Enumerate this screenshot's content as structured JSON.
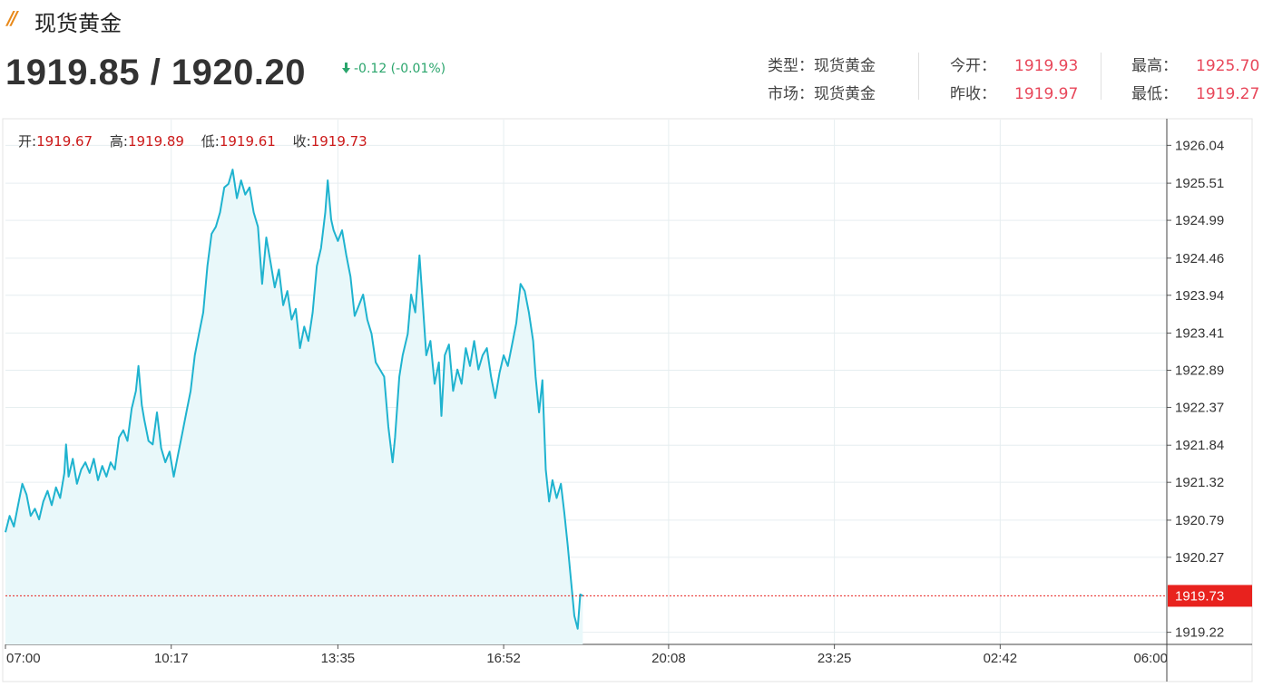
{
  "header": {
    "logo_mark": "//",
    "title": "现货黄金",
    "bid_ask": "1919.85 / 1920.20",
    "change": "-0.12 (-0.01%)"
  },
  "info": {
    "type_label": "类型：",
    "type_value": "现货黄金",
    "market_label": "市场：",
    "market_value": "现货黄金",
    "open_label": "今开：",
    "open_value": "1919.93",
    "prevclose_label": "昨收：",
    "prevclose_value": "1919.97",
    "high_label": "最高：",
    "high_value": "1925.70",
    "low_label": "最低：",
    "low_value": "1919.27"
  },
  "ohlc": {
    "open_label": "开:",
    "open_value": "1919.67",
    "high_label": "高:",
    "high_value": "1919.89",
    "low_label": "低:",
    "low_value": "1919.61",
    "close_label": "收:",
    "close_value": "1919.73"
  },
  "colors": {
    "line": "#1fb3cf",
    "fill": "#e9f8fa",
    "grid": "#e6eef0",
    "current_price_bg": "#e8221e",
    "up_down": "#2aa56c",
    "value_red": "#e8475a"
  },
  "chart_data": {
    "type": "area",
    "current_price": 1919.73,
    "y_ticks": [
      1926.04,
      1925.51,
      1924.99,
      1924.46,
      1923.94,
      1923.41,
      1922.89,
      1922.37,
      1921.84,
      1921.32,
      1920.79,
      1920.27,
      1919.22
    ],
    "ylim": [
      1919.05,
      1926.4
    ],
    "x_ticks": [
      "07:00",
      "10:17",
      "13:35",
      "16:52",
      "20:08",
      "23:25",
      "02:42",
      "06:00"
    ],
    "x_tick_minutes": [
      0,
      197,
      395,
      592,
      788,
      985,
      1182,
      1380
    ],
    "x_range_minutes": [
      0,
      1380
    ],
    "series": [
      {
        "values": [
          [
            0,
            1920.62
          ],
          [
            5,
            1920.85
          ],
          [
            10,
            1920.7
          ],
          [
            15,
            1921.0
          ],
          [
            20,
            1921.3
          ],
          [
            25,
            1921.15
          ],
          [
            30,
            1920.85
          ],
          [
            35,
            1920.95
          ],
          [
            40,
            1920.8
          ],
          [
            45,
            1921.05
          ],
          [
            50,
            1921.2
          ],
          [
            55,
            1921.0
          ],
          [
            60,
            1921.25
          ],
          [
            65,
            1921.1
          ],
          [
            70,
            1921.45
          ],
          [
            72,
            1921.85
          ],
          [
            75,
            1921.4
          ],
          [
            80,
            1921.65
          ],
          [
            85,
            1921.3
          ],
          [
            90,
            1921.5
          ],
          [
            95,
            1921.6
          ],
          [
            100,
            1921.45
          ],
          [
            105,
            1921.65
          ],
          [
            110,
            1921.35
          ],
          [
            115,
            1921.55
          ],
          [
            120,
            1921.4
          ],
          [
            125,
            1921.6
          ],
          [
            130,
            1921.5
          ],
          [
            135,
            1921.95
          ],
          [
            140,
            1922.05
          ],
          [
            145,
            1921.9
          ],
          [
            150,
            1922.35
          ],
          [
            155,
            1922.6
          ],
          [
            158,
            1922.95
          ],
          [
            162,
            1922.4
          ],
          [
            165,
            1922.2
          ],
          [
            170,
            1921.9
          ],
          [
            175,
            1921.85
          ],
          [
            180,
            1922.3
          ],
          [
            185,
            1921.8
          ],
          [
            190,
            1921.6
          ],
          [
            195,
            1921.75
          ],
          [
            200,
            1921.4
          ],
          [
            205,
            1921.7
          ],
          [
            210,
            1922.0
          ],
          [
            215,
            1922.3
          ],
          [
            220,
            1922.6
          ],
          [
            225,
            1923.1
          ],
          [
            230,
            1923.4
          ],
          [
            235,
            1923.7
          ],
          [
            240,
            1924.35
          ],
          [
            245,
            1924.8
          ],
          [
            250,
            1924.9
          ],
          [
            255,
            1925.1
          ],
          [
            260,
            1925.45
          ],
          [
            265,
            1925.5
          ],
          [
            270,
            1925.7
          ],
          [
            275,
            1925.3
          ],
          [
            280,
            1925.55
          ],
          [
            285,
            1925.35
          ],
          [
            290,
            1925.45
          ],
          [
            295,
            1925.1
          ],
          [
            300,
            1924.9
          ],
          [
            305,
            1924.1
          ],
          [
            310,
            1924.75
          ],
          [
            315,
            1924.4
          ],
          [
            320,
            1924.05
          ],
          [
            325,
            1924.3
          ],
          [
            330,
            1923.8
          ],
          [
            335,
            1924.0
          ],
          [
            340,
            1923.6
          ],
          [
            345,
            1923.75
          ],
          [
            350,
            1923.2
          ],
          [
            355,
            1923.5
          ],
          [
            360,
            1923.3
          ],
          [
            365,
            1923.7
          ],
          [
            370,
            1924.35
          ],
          [
            375,
            1924.6
          ],
          [
            380,
            1925.1
          ],
          [
            383,
            1925.55
          ],
          [
            387,
            1925.0
          ],
          [
            390,
            1924.85
          ],
          [
            395,
            1924.7
          ],
          [
            400,
            1924.85
          ],
          [
            405,
            1924.5
          ],
          [
            410,
            1924.2
          ],
          [
            415,
            1923.65
          ],
          [
            420,
            1923.8
          ],
          [
            425,
            1923.95
          ],
          [
            430,
            1923.6
          ],
          [
            435,
            1923.4
          ],
          [
            440,
            1923.0
          ],
          [
            445,
            1922.9
          ],
          [
            450,
            1922.8
          ],
          [
            455,
            1922.1
          ],
          [
            460,
            1921.6
          ],
          [
            463,
            1921.95
          ],
          [
            468,
            1922.8
          ],
          [
            472,
            1923.1
          ],
          [
            478,
            1923.4
          ],
          [
            482,
            1923.95
          ],
          [
            487,
            1923.7
          ],
          [
            492,
            1924.5
          ],
          [
            496,
            1923.8
          ],
          [
            500,
            1923.1
          ],
          [
            505,
            1923.3
          ],
          [
            510,
            1922.7
          ],
          [
            515,
            1923.0
          ],
          [
            518,
            1922.25
          ],
          [
            522,
            1923.1
          ],
          [
            527,
            1923.25
          ],
          [
            532,
            1922.6
          ],
          [
            537,
            1922.9
          ],
          [
            542,
            1922.7
          ],
          [
            547,
            1923.2
          ],
          [
            552,
            1922.95
          ],
          [
            557,
            1923.3
          ],
          [
            562,
            1922.9
          ],
          [
            567,
            1923.1
          ],
          [
            572,
            1923.2
          ],
          [
            577,
            1922.8
          ],
          [
            582,
            1922.5
          ],
          [
            587,
            1922.85
          ],
          [
            592,
            1923.1
          ],
          [
            597,
            1922.95
          ],
          [
            602,
            1923.25
          ],
          [
            607,
            1923.55
          ],
          [
            612,
            1924.1
          ],
          [
            617,
            1924.0
          ],
          [
            622,
            1923.7
          ],
          [
            627,
            1923.3
          ],
          [
            630,
            1922.8
          ],
          [
            634,
            1922.3
          ],
          [
            638,
            1922.75
          ],
          [
            642,
            1921.5
          ],
          [
            646,
            1921.05
          ],
          [
            650,
            1921.35
          ],
          [
            655,
            1921.1
          ],
          [
            660,
            1921.3
          ],
          [
            664,
            1920.9
          ],
          [
            668,
            1920.45
          ],
          [
            672,
            1919.95
          ],
          [
            676,
            1919.45
          ],
          [
            680,
            1919.27
          ],
          [
            683,
            1919.75
          ],
          [
            686,
            1919.73
          ]
        ]
      }
    ],
    "grid": true
  }
}
